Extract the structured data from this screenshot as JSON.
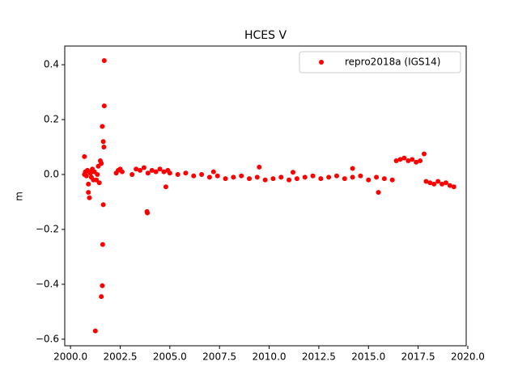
{
  "chart_data": {
    "type": "scatter",
    "title": "HCES V",
    "ylabel": "m",
    "xlim": [
      1999.71,
      2019.92
    ],
    "ylim": [
      -0.624,
      0.468
    ],
    "xticks": [
      {
        "value": 2000,
        "label": "2000.0"
      },
      {
        "value": 2002.5,
        "label": "2002.5"
      },
      {
        "value": 2005,
        "label": "2005.0"
      },
      {
        "value": 2007.5,
        "label": "2007.5"
      },
      {
        "value": 2010,
        "label": "2010.0"
      },
      {
        "value": 2012.5,
        "label": "2012.5"
      },
      {
        "value": 2015,
        "label": "2015.0"
      },
      {
        "value": 2017.5,
        "label": "2017.5"
      },
      {
        "value": 2020,
        "label": "2020.0"
      }
    ],
    "yticks": [
      {
        "value": -0.6,
        "label": "−0.6"
      },
      {
        "value": -0.4,
        "label": "−0.4"
      },
      {
        "value": -0.2,
        "label": "−0.2"
      },
      {
        "value": 0,
        "label": "0.0"
      },
      0.2,
      0.4
    ],
    "legend": "upper right",
    "series": [
      {
        "name": "repro2018a (IGS14)",
        "color": "#ff0000",
        "x": [
          2000.7,
          2000.75,
          2000.8,
          2000.85,
          2000.9,
          2000.95,
          2001.0,
          2001.05,
          2001.1,
          2001.15,
          2001.2,
          2001.25,
          2001.3,
          2001.35,
          2001.4,
          2001.45,
          2001.5,
          2001.55,
          2001.6,
          2001.62,
          2001.65,
          2001.68,
          2001.7,
          2000.7,
          2000.9,
          2000.95,
          2001.6,
          2001.65,
          2001.7,
          2001.55,
          2002.3,
          2002.4,
          2002.5,
          2002.6,
          2003.1,
          2003.3,
          2003.5,
          2003.7,
          2003.9,
          2004.1,
          2004.3,
          2004.5,
          2004.7,
          2004.9,
          2003.85,
          2003.87,
          2004.8,
          2005.0,
          2005.4,
          2005.8,
          2006.2,
          2006.6,
          2007.0,
          2007.4,
          2007.8,
          2008.2,
          2008.6,
          2009.0,
          2009.4,
          2009.8,
          2010.2,
          2010.6,
          2011.0,
          2011.4,
          2011.8,
          2012.2,
          2012.6,
          2013.0,
          2013.4,
          2013.8,
          2014.2,
          2014.6,
          2015.0,
          2015.4,
          2015.8,
          2016.2,
          2009.5,
          2014.2,
          2015.5,
          2007.2,
          2011.2,
          2016.4,
          2016.6,
          2016.8,
          2017.0,
          2017.2,
          2017.4,
          2017.6,
          2017.8,
          2017.9,
          2018.1,
          2018.3,
          2018.5,
          2018.7,
          2018.9,
          2019.1,
          2019.3
        ],
        "values": [
          0.065,
          0.01,
          -0.005,
          0.015,
          -0.035,
          -0.085,
          0.005,
          -0.01,
          0.02,
          -0.02,
          0.01,
          -0.57,
          -0.02,
          0.0,
          0.03,
          -0.03,
          0.05,
          -0.445,
          -0.405,
          -0.255,
          0.12,
          0.1,
          0.415,
          0.0,
          -0.065,
          0.01,
          0.175,
          -0.11,
          0.25,
          0.04,
          0.005,
          0.015,
          0.02,
          0.01,
          0.0,
          0.02,
          0.015,
          0.025,
          0.005,
          0.015,
          0.01,
          0.02,
          0.01,
          0.015,
          -0.135,
          -0.14,
          -0.045,
          0.005,
          0.0,
          0.005,
          -0.005,
          0.0,
          -0.01,
          -0.005,
          -0.015,
          -0.01,
          -0.005,
          -0.015,
          -0.01,
          -0.02,
          -0.015,
          -0.01,
          -0.02,
          -0.015,
          -0.01,
          -0.005,
          -0.015,
          -0.01,
          -0.005,
          -0.015,
          -0.01,
          -0.005,
          -0.02,
          -0.01,
          -0.015,
          -0.02,
          0.027,
          0.022,
          -0.065,
          0.01,
          0.008,
          0.05,
          0.055,
          0.06,
          0.05,
          0.055,
          0.045,
          0.05,
          0.075,
          -0.025,
          -0.03,
          -0.035,
          -0.025,
          -0.035,
          -0.03,
          -0.04,
          -0.045
        ]
      }
    ]
  }
}
